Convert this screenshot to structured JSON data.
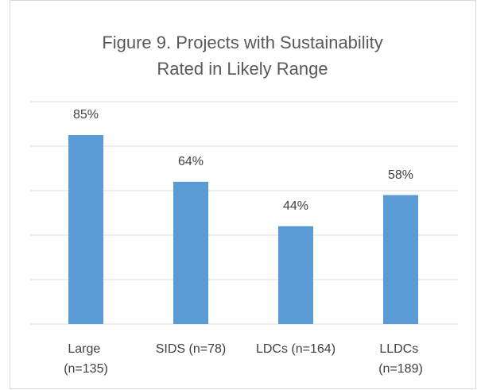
{
  "chart_data": {
    "type": "bar",
    "title": [
      "Figure 9. Projects with Sustainability",
      "Rated in Likely Range"
    ],
    "categories": [
      "Large (n=135)",
      "SIDS (n=78)",
      "LDCs (n=164)",
      "LLDCs (n=189)"
    ],
    "values": [
      85,
      64,
      44,
      58
    ],
    "value_labels": [
      "85%",
      "64%",
      "44%",
      "58%"
    ],
    "color": "#5b9bd5",
    "ylim": [
      0,
      100
    ],
    "yticks": [
      0,
      20,
      40,
      60,
      80,
      100
    ],
    "grid": true
  }
}
